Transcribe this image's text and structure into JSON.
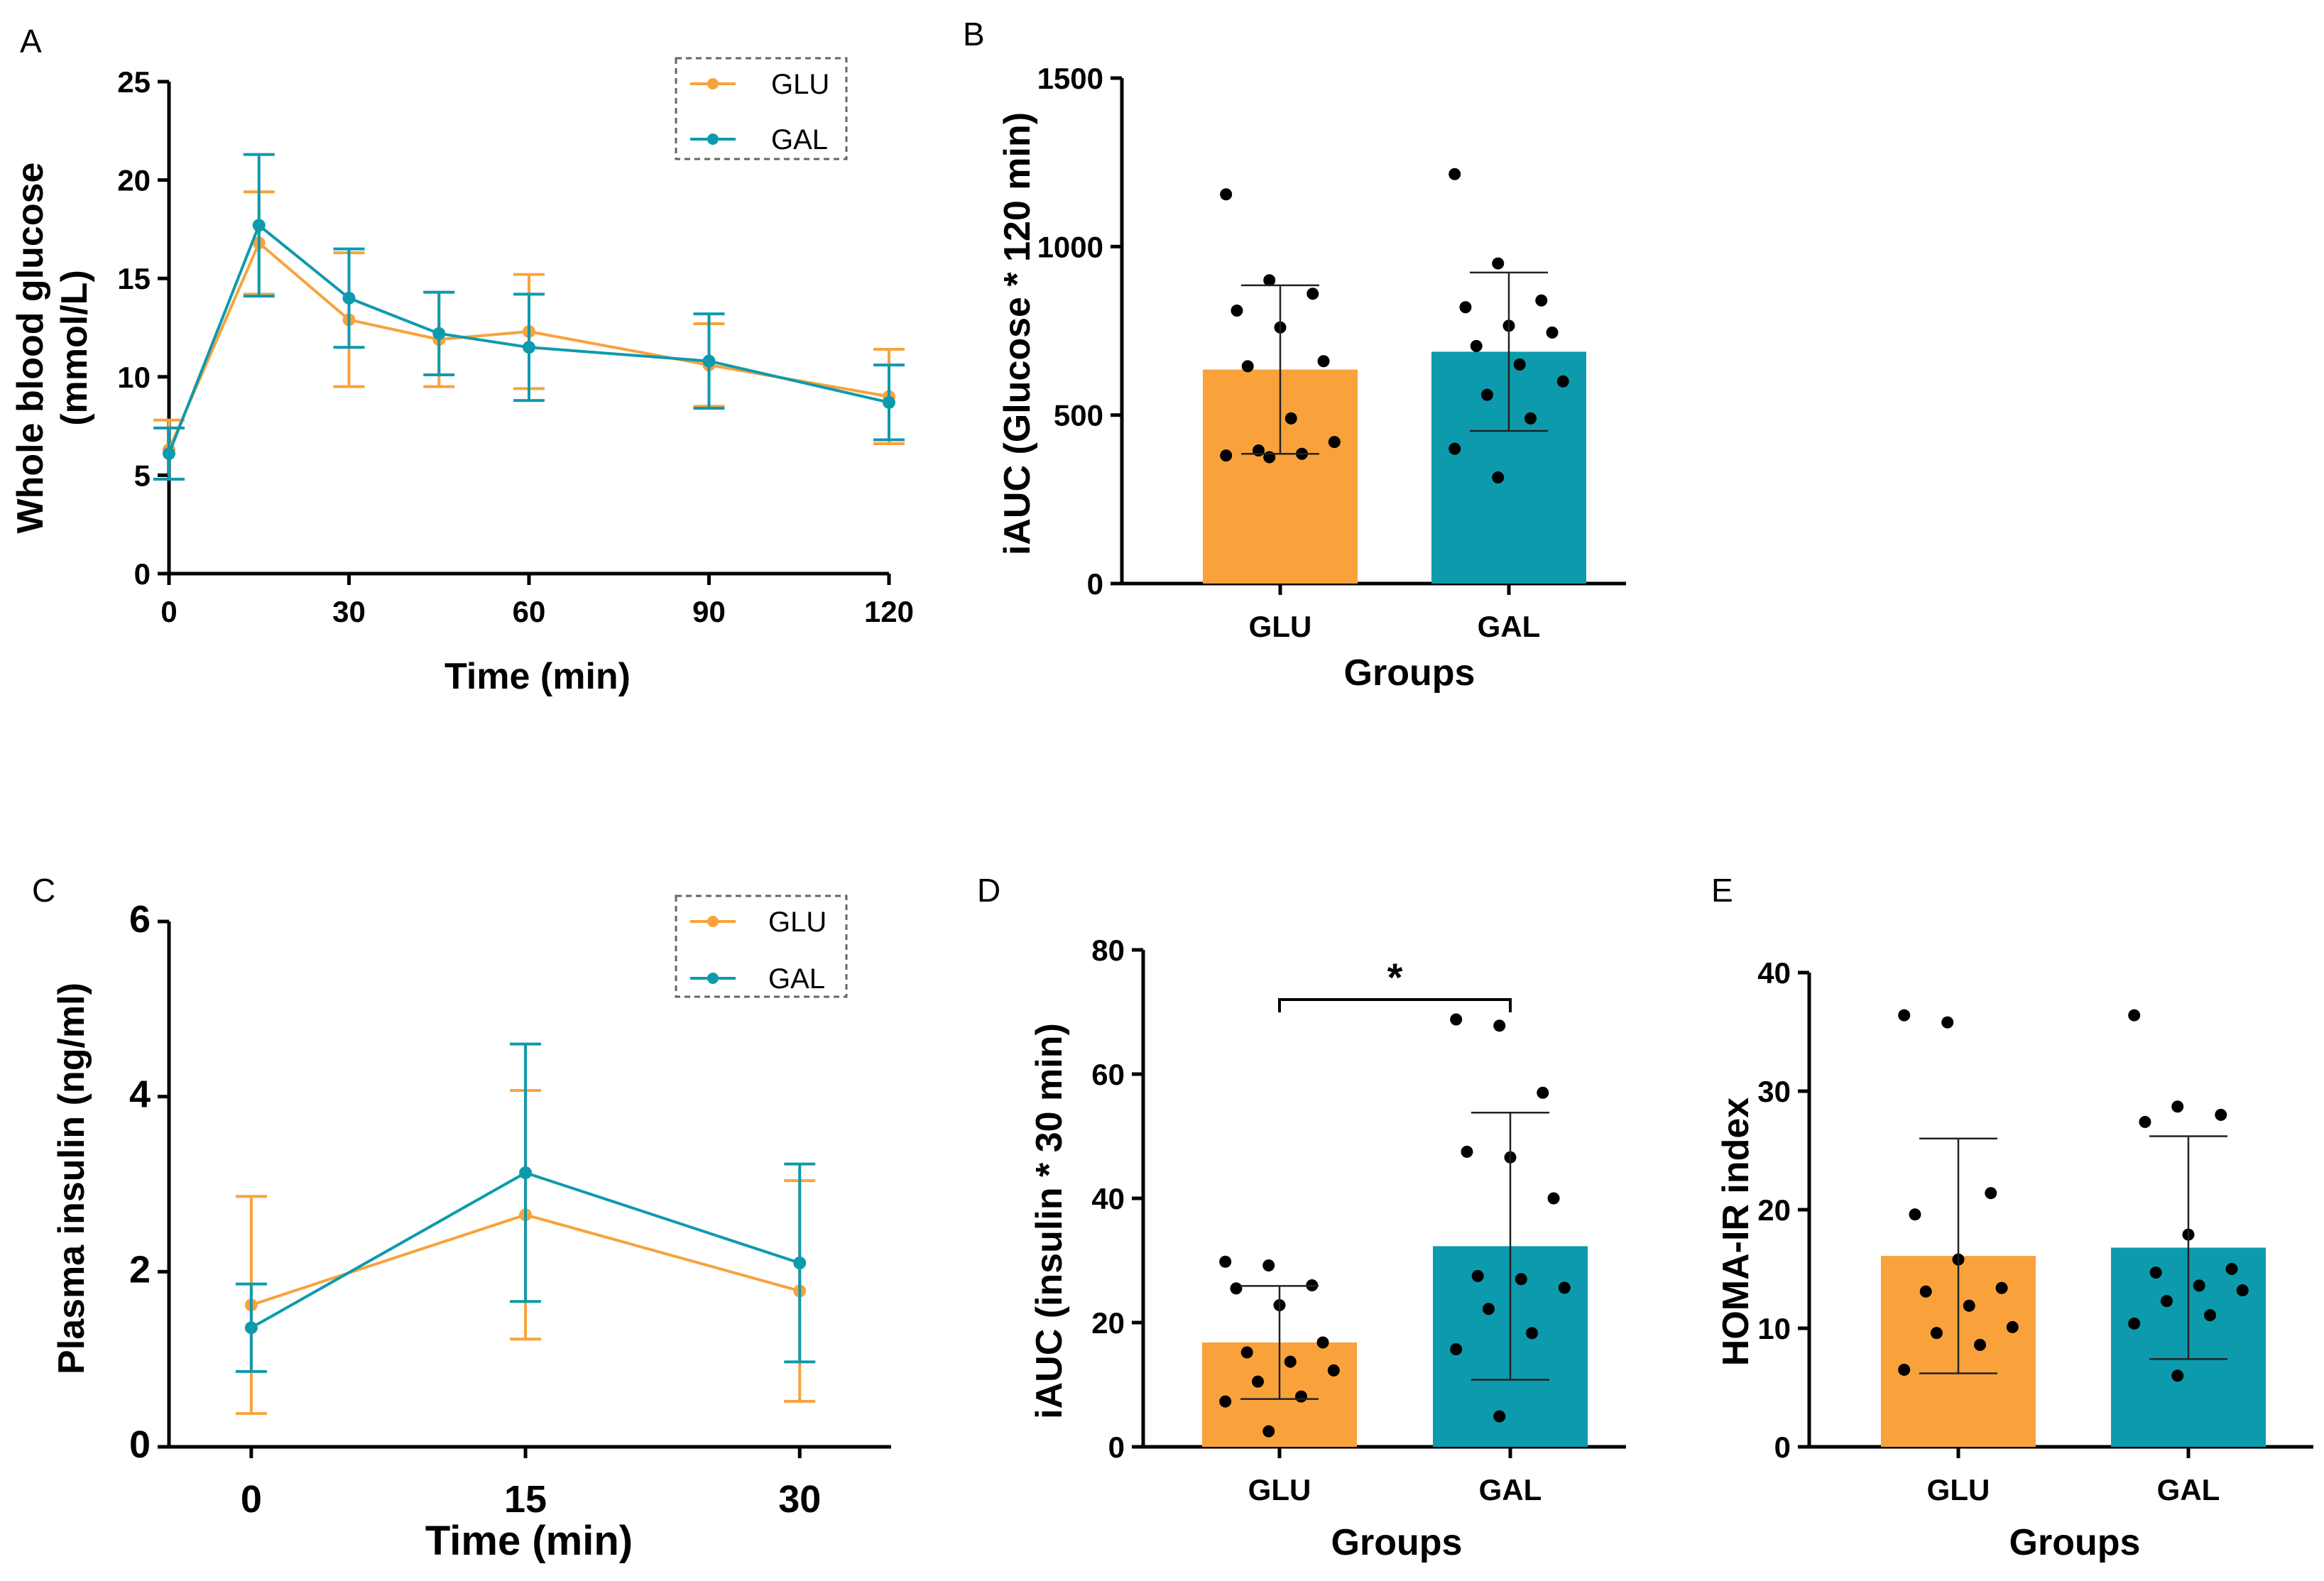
{
  "colors": {
    "GLU": "#f9a23c",
    "GAL": "#0e9aad",
    "axis": "#000000",
    "point": "#000000"
  },
  "chart_data": [
    {
      "panel": "A",
      "type": "line",
      "xlabel": "Time (min)",
      "ylabel_line1": "Whole blood glucose",
      "ylabel_line2": "(mmol/L)",
      "xlim": [
        0,
        120
      ],
      "ylim": [
        0,
        25
      ],
      "xticks": [
        0,
        30,
        60,
        90,
        120
      ],
      "yticks": [
        0,
        5,
        10,
        15,
        20,
        25
      ],
      "legend": [
        "GLU",
        "GAL"
      ],
      "legend_position": "top-right",
      "series": [
        {
          "name": "GLU",
          "x": [
            0,
            15,
            30,
            45,
            60,
            90,
            120
          ],
          "y": [
            6.3,
            16.8,
            12.9,
            11.9,
            12.3,
            10.6,
            9.0
          ],
          "err": [
            1.5,
            2.6,
            3.4,
            2.4,
            2.9,
            2.1,
            2.4
          ]
        },
        {
          "name": "GAL",
          "x": [
            0,
            15,
            30,
            45,
            60,
            90,
            120
          ],
          "y": [
            6.1,
            17.7,
            14.0,
            12.2,
            11.5,
            10.8,
            8.7
          ],
          "err": [
            1.3,
            3.6,
            2.5,
            2.1,
            2.7,
            2.4,
            1.9
          ]
        }
      ]
    },
    {
      "panel": "B",
      "type": "bar",
      "xlabel": "Groups",
      "ylabel": "iAUC (Glucose * 120 min)",
      "ylim": [
        0,
        1500
      ],
      "yticks": [
        0,
        500,
        1000,
        1500
      ],
      "categories": [
        "GLU",
        "GAL"
      ],
      "values": [
        635,
        688
      ],
      "errors": [
        250,
        235
      ],
      "points": [
        [
          1155,
          900,
          860,
          810,
          760,
          660,
          645,
          490,
          420,
          395,
          385,
          380,
          375
        ],
        [
          1215,
          950,
          840,
          820,
          765,
          745,
          705,
          650,
          600,
          560,
          490,
          400,
          315
        ]
      ]
    },
    {
      "panel": "C",
      "type": "line",
      "xlabel": "Time (min)",
      "ylabel": "Plasma insulin (ng/ml)",
      "xlim": [
        -4.5,
        35
      ],
      "ylim": [
        0,
        6
      ],
      "xticks": [
        0,
        15,
        30
      ],
      "yticks": [
        0,
        2,
        4,
        6
      ],
      "legend": [
        "GLU",
        "GAL"
      ],
      "legend_position": "top-right",
      "series": [
        {
          "name": "GLU",
          "x": [
            0,
            15,
            30
          ],
          "y": [
            1.62,
            2.65,
            1.78
          ],
          "err": [
            1.24,
            1.42,
            1.26
          ]
        },
        {
          "name": "GAL",
          "x": [
            0,
            15,
            30
          ],
          "y": [
            1.36,
            3.13,
            2.1
          ],
          "err": [
            0.5,
            1.47,
            1.13
          ]
        }
      ]
    },
    {
      "panel": "D",
      "type": "bar",
      "xlabel": "Groups",
      "ylabel": "iAUC (insulin * 30 min)",
      "ylim": [
        0,
        80
      ],
      "yticks": [
        0,
        20,
        40,
        60,
        80
      ],
      "categories": [
        "GLU",
        "GAL"
      ],
      "values": [
        16.8,
        32.3
      ],
      "errors": [
        9.1,
        21.5
      ],
      "significance": "*",
      "points": [
        [
          29.8,
          29.2,
          26.0,
          25.5,
          22.8,
          16.8,
          15.2,
          13.7,
          12.3,
          10.5,
          8.1,
          7.3,
          2.5
        ],
        [
          68.8,
          67.8,
          57.0,
          47.5,
          46.6,
          40.0,
          27.5,
          27.0,
          25.6,
          22.2,
          18.3,
          15.7,
          4.9
        ]
      ]
    },
    {
      "panel": "E",
      "type": "bar",
      "xlabel": "Groups",
      "ylabel": "HOMA-IR index",
      "ylim": [
        0,
        40
      ],
      "yticks": [
        0,
        10,
        20,
        30,
        40
      ],
      "categories": [
        "GLU",
        "GAL"
      ],
      "values": [
        16.1,
        16.8
      ],
      "errors": [
        9.9,
        9.4
      ],
      "points": [
        [
          36.4,
          35.8,
          21.4,
          19.6,
          15.8,
          13.4,
          13.1,
          11.9,
          10.1,
          9.6,
          8.6,
          6.5
        ],
        [
          36.4,
          28.7,
          28.0,
          27.4,
          17.9,
          15.0,
          14.7,
          13.6,
          13.2,
          12.3,
          11.1,
          10.4,
          6.0
        ]
      ]
    }
  ]
}
